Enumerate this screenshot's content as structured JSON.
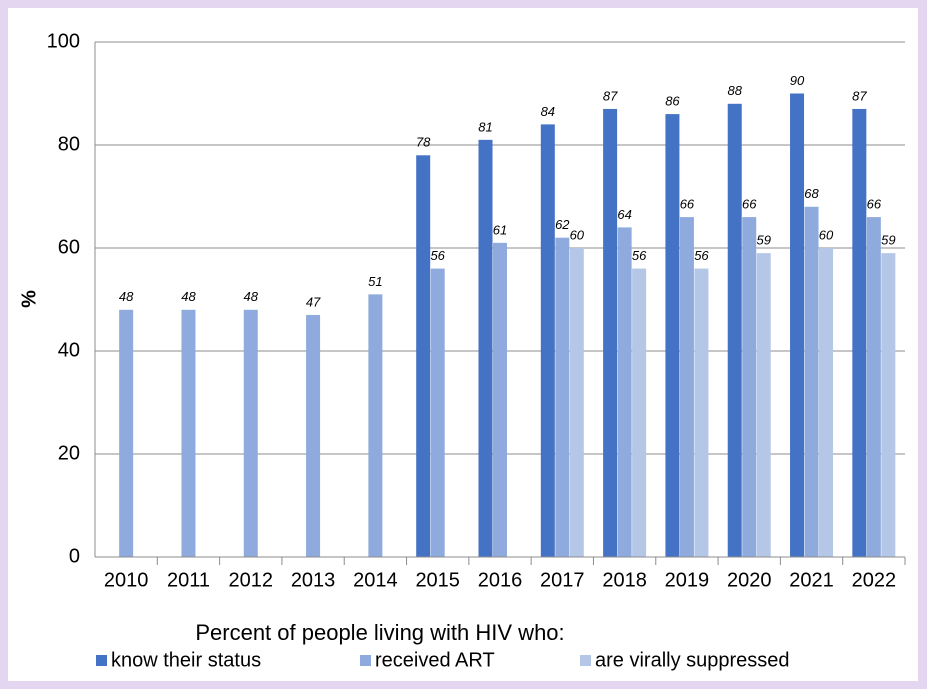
{
  "chart_data": {
    "type": "bar",
    "y_label": "%",
    "legend_title": "Percent of people living with HIV who:",
    "categories": [
      "2010",
      "2011",
      "2012",
      "2013",
      "2014",
      "2015",
      "2016",
      "2017",
      "2018",
      "2019",
      "2020",
      "2021",
      "2022"
    ],
    "series": [
      {
        "name": "know their status",
        "color": "#4472c4",
        "values": [
          null,
          null,
          null,
          null,
          null,
          78,
          81,
          84,
          87,
          86,
          88,
          90,
          87
        ]
      },
      {
        "name": "received ART",
        "color": "#8faadc",
        "values": [
          48,
          48,
          48,
          47,
          51,
          56,
          61,
          62,
          64,
          66,
          66,
          68,
          66
        ]
      },
      {
        "name": "are virally suppressed",
        "color": "#b4c7e7",
        "values": [
          null,
          null,
          null,
          null,
          null,
          null,
          null,
          60,
          56,
          56,
          59,
          60,
          59
        ]
      }
    ],
    "ylim": [
      0,
      100
    ],
    "yticks": [
      0,
      20,
      40,
      60,
      80,
      100
    ],
    "grid": true,
    "legend": "bottom"
  }
}
